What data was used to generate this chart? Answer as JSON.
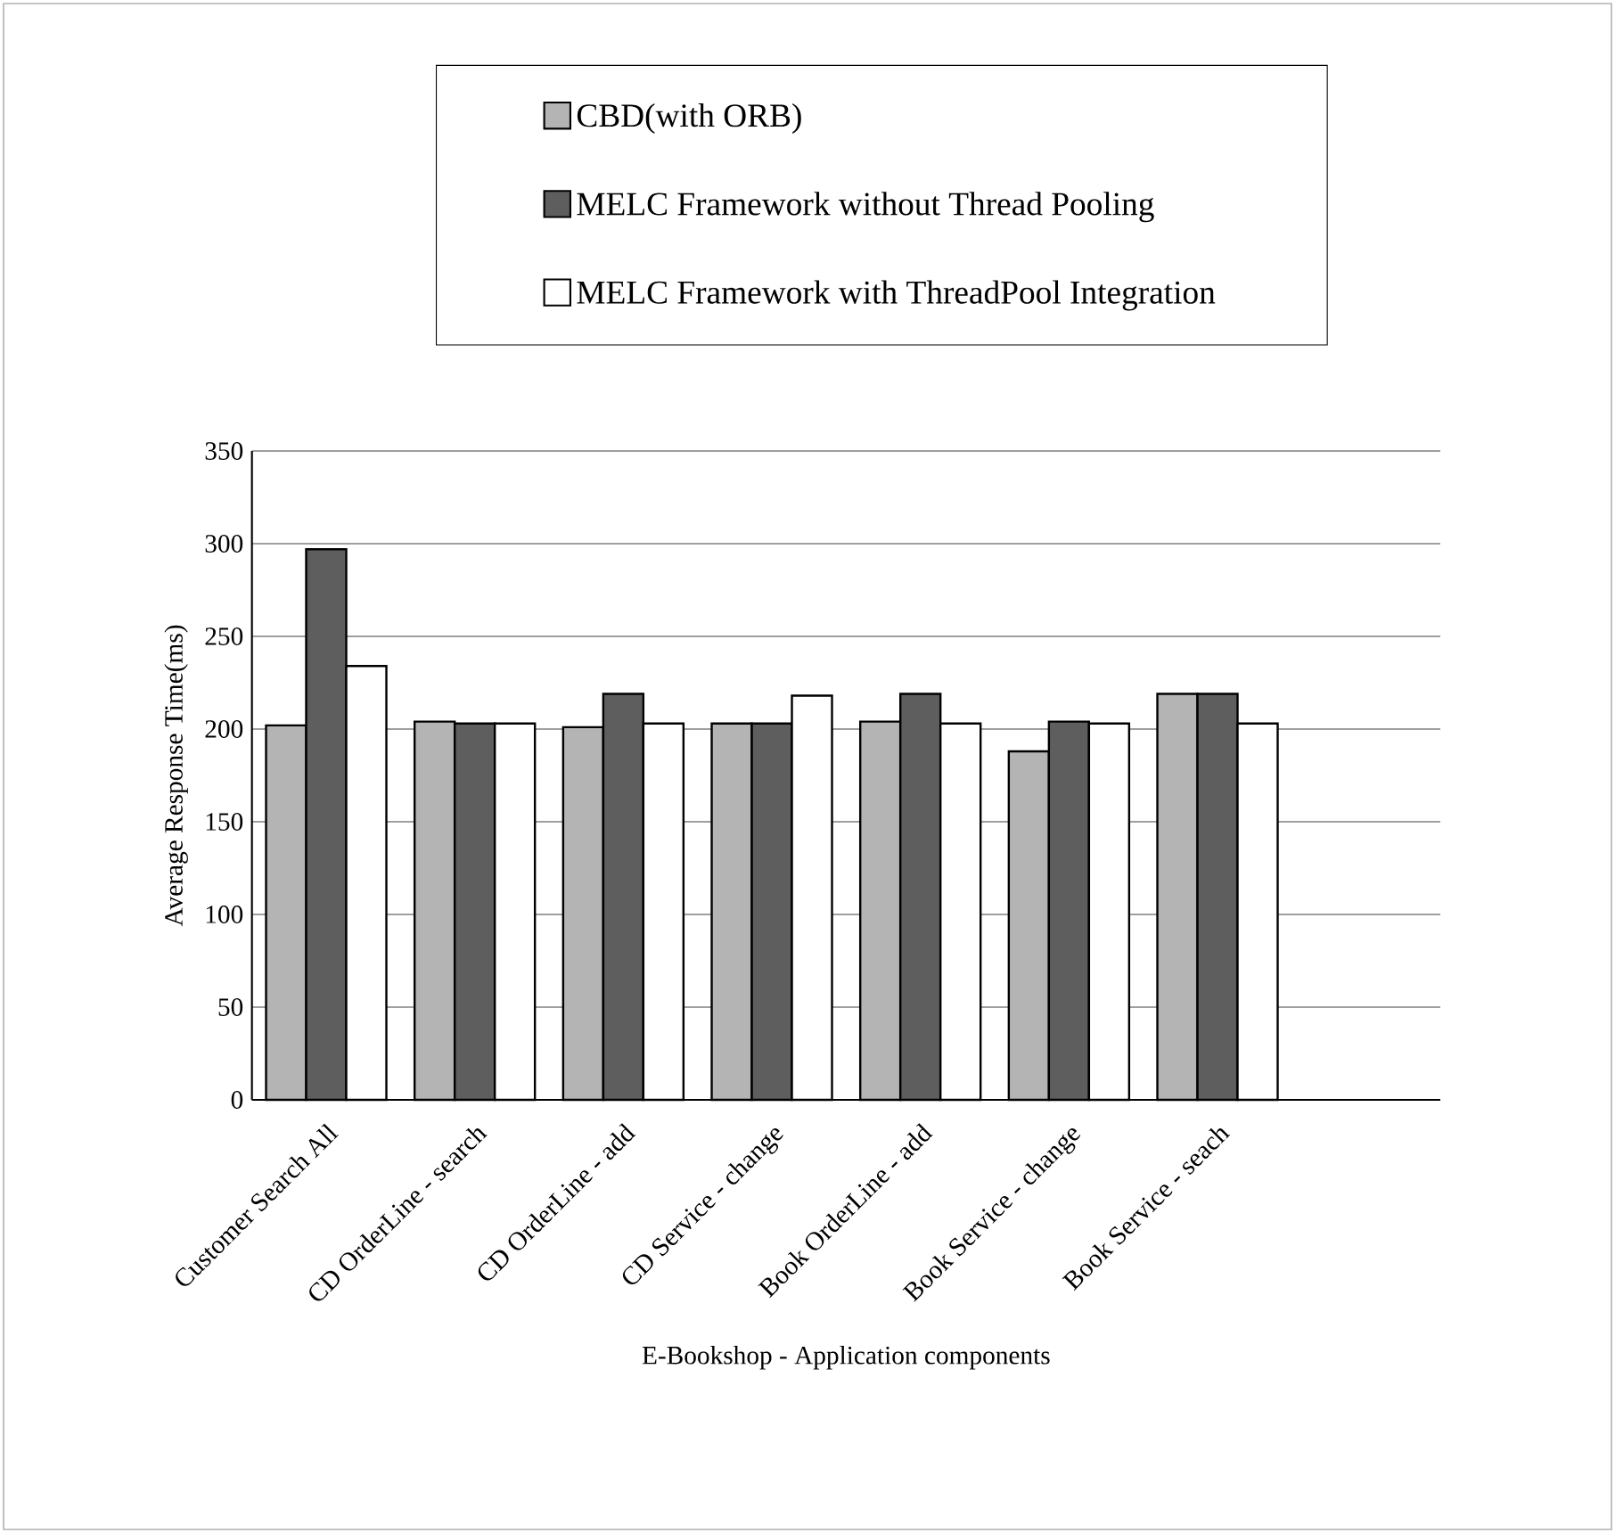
{
  "chart_data": {
    "type": "bar",
    "xlabel": "E-Bookshop - Application components",
    "ylabel": "Average Response Time(ms)",
    "categories": [
      "Customer Search All",
      "CD OrderLine - search",
      "CD OrderLine - add",
      "CD Service - change",
      "Book OrderLine - add",
      "Book Service - change",
      "Book Service - seach",
      null
    ],
    "series": [
      {
        "name": "CBD(with ORB)",
        "color": "#b4b4b4",
        "values": [
          202,
          204,
          201,
          203,
          204,
          188,
          219,
          null
        ]
      },
      {
        "name": "MELC Framework without Thread Pooling",
        "color": "#5e5e5e",
        "values": [
          297,
          203,
          219,
          203,
          219,
          204,
          219,
          null
        ]
      },
      {
        "name": "MELC Framework with ThreadPool Integration",
        "color": "#ffffff",
        "values": [
          234,
          203,
          203,
          218,
          203,
          203,
          203,
          null
        ]
      }
    ],
    "ylim": [
      0,
      350
    ],
    "yticks": [
      0,
      50,
      100,
      150,
      200,
      250,
      300,
      350
    ],
    "grid": "y",
    "legend": "top"
  }
}
